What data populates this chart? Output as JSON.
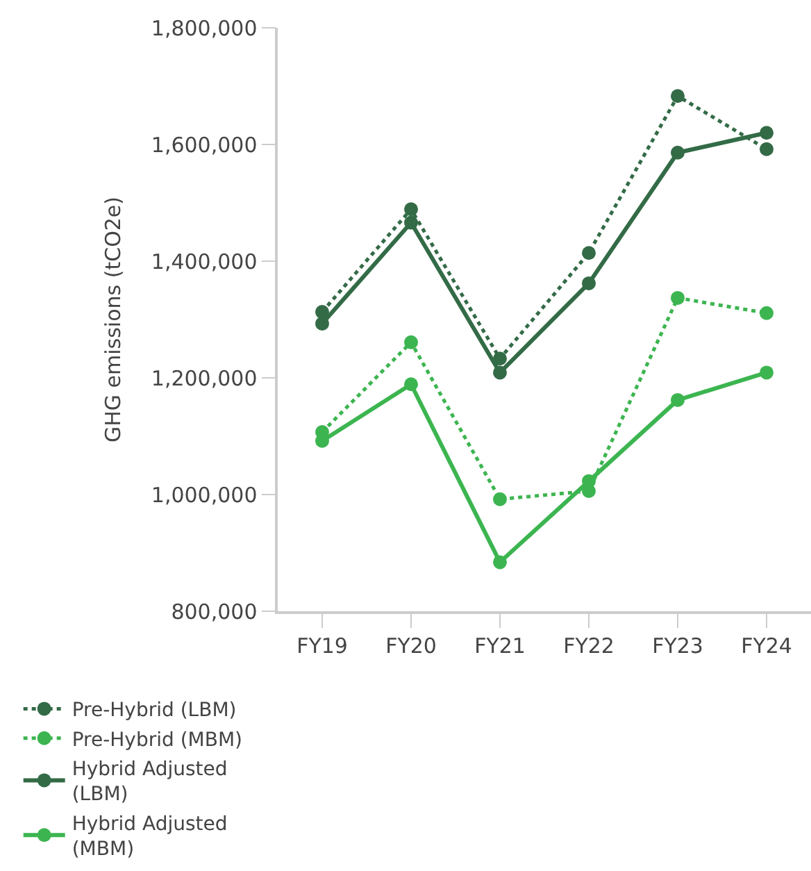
{
  "chart_data": {
    "type": "line",
    "ylabel": "GHG emissions (tCO2e)",
    "categories": [
      "FY19",
      "FY20",
      "FY21",
      "FY22",
      "FY23",
      "FY24"
    ],
    "series": [
      {
        "name": "Pre-Hybrid (LBM)",
        "color": "#336b47",
        "line_style": "dotted",
        "values": [
          1313000,
          1489000,
          1233000,
          1414000,
          1683000,
          1592000
        ]
      },
      {
        "name": "Pre-Hybrid (MBM)",
        "color": "#3cb550",
        "line_style": "dotted",
        "values": [
          1107000,
          1261000,
          992000,
          1006000,
          1337000,
          1311000
        ]
      },
      {
        "name": "Hybrid Adjusted (LBM)",
        "color": "#336b47",
        "line_style": "solid",
        "values": [
          1293000,
          1466000,
          1209000,
          1362000,
          1586000,
          1620000
        ]
      },
      {
        "name": "Hybrid Adjusted (MBM)",
        "color": "#3cb550",
        "line_style": "solid",
        "values": [
          1092000,
          1189000,
          884000,
          1023000,
          1162000,
          1209000
        ]
      }
    ],
    "ylim": [
      800000,
      1800000
    ],
    "yticks": [
      {
        "value": 800000,
        "label": "800,000"
      },
      {
        "value": 1000000,
        "label": "1,000,000"
      },
      {
        "value": 1200000,
        "label": "1,200,000"
      },
      {
        "value": 1400000,
        "label": "1,400,000"
      },
      {
        "value": 1600000,
        "label": "1,600,000"
      },
      {
        "value": 1800000,
        "label": "1,800,000"
      }
    ],
    "legend": "bottom",
    "marker": "circle"
  }
}
